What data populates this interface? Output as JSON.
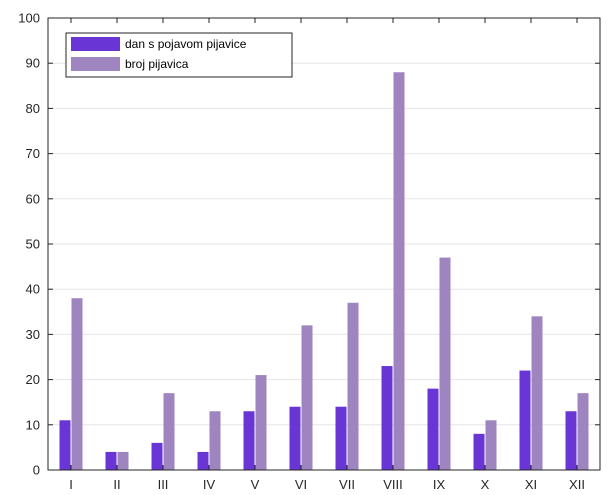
{
  "chart_data": {
    "type": "bar",
    "categories": [
      "I",
      "II",
      "III",
      "IV",
      "V",
      "VI",
      "VII",
      "VIII",
      "IX",
      "X",
      "XI",
      "XII"
    ],
    "series": [
      {
        "name": "dan s pojavom pijavice",
        "values": [
          11,
          4,
          6,
          4,
          13,
          14,
          14,
          23,
          18,
          8,
          22,
          13
        ],
        "color": "#6a35d5"
      },
      {
        "name": "broj pijavica",
        "values": [
          38,
          4,
          17,
          13,
          21,
          32,
          37,
          88,
          47,
          11,
          34,
          17
        ],
        "color": "#9e85bf"
      }
    ],
    "yticks": [
      0,
      10,
      20,
      30,
      40,
      50,
      60,
      70,
      80,
      90,
      100
    ],
    "ylim": [
      0,
      100
    ],
    "grid": "horizontal",
    "legend_position": "top-left"
  }
}
